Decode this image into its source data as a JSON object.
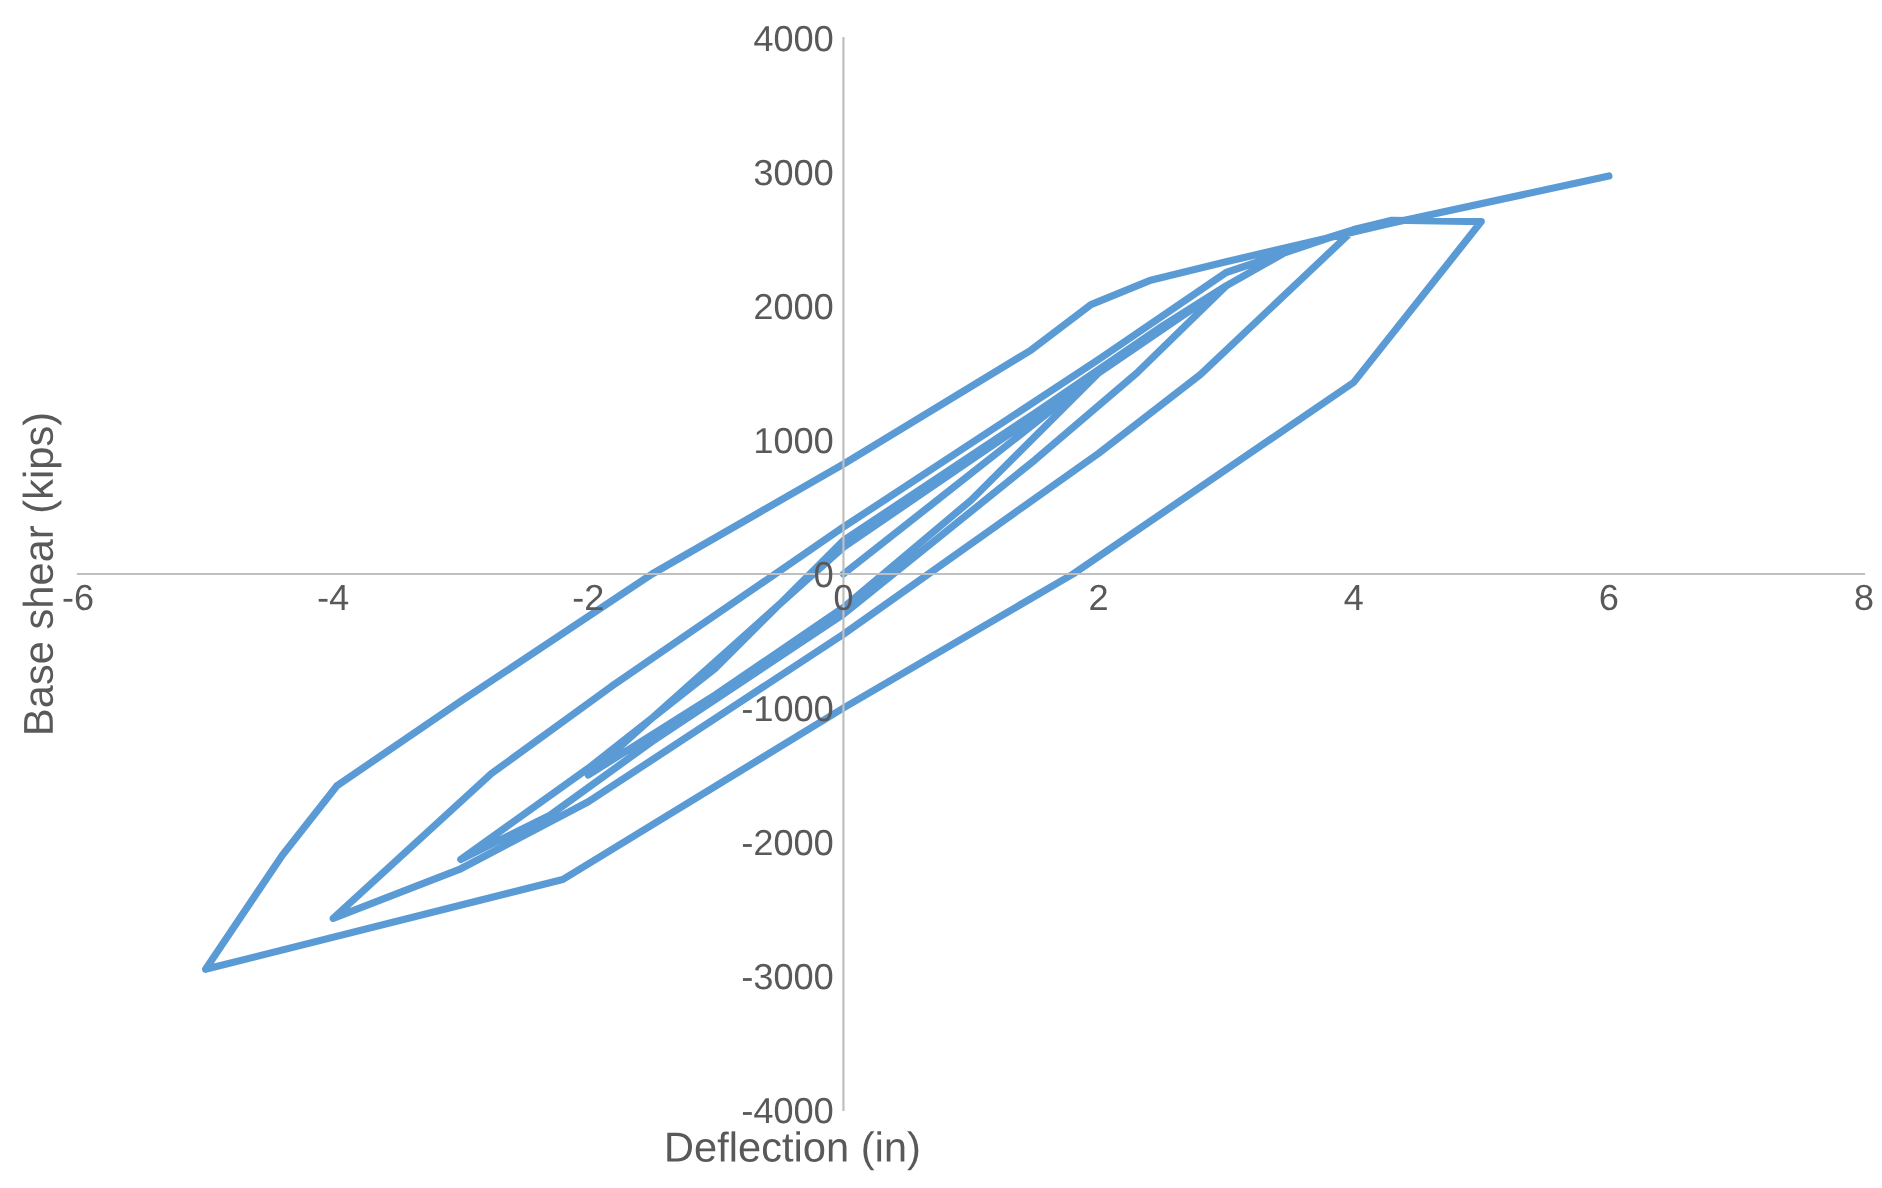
{
  "chart_data": {
    "type": "line",
    "xlabel": "Deflection (in)",
    "ylabel": "Base shear (kips)",
    "xlim": [
      -6,
      8
    ],
    "xticks": [
      -6,
      -4,
      -2,
      0,
      2,
      4,
      6,
      8
    ],
    "ylim": [
      -4000,
      4000
    ],
    "yticks": [
      -4000,
      -3000,
      -2000,
      -1000,
      0,
      1000,
      2000,
      3000,
      4000
    ],
    "grid": false,
    "legend": false,
    "marker": "none",
    "line_style": "solid",
    "series": [
      {
        "color": "#5b9bd5",
        "x": [
          0,
          1,
          2,
          1,
          0,
          -1,
          -2,
          -1,
          0,
          1,
          2,
          3,
          2.3,
          1.5,
          0,
          -1.5,
          -2.3,
          -3,
          -2,
          -1,
          0,
          1.5,
          2.5,
          3,
          3.5,
          4,
          2.8,
          2,
          0,
          -2,
          -3,
          -4,
          -2.76,
          -1.82,
          0,
          2,
          3,
          4,
          4.3,
          5,
          4,
          1.8,
          0,
          -2.2,
          -5,
          -4.4,
          -3.97,
          -3,
          -1.5,
          0,
          1.47,
          1.94,
          2.4,
          3,
          4.3,
          6
        ],
        "values": [
          0,
          750,
          1500,
          550,
          -250,
          -900,
          -1500,
          -650,
          200,
          850,
          1500,
          2150,
          1500,
          850,
          -300,
          -1250,
          -1800,
          -2130,
          -1450,
          -700,
          250,
          1200,
          1850,
          2150,
          2420,
          2570,
          1490,
          900,
          -450,
          -1700,
          -2200,
          -2570,
          -1490,
          -840,
          350,
          1600,
          2250,
          2570,
          2640,
          2630,
          1430,
          0,
          -1000,
          -2280,
          -2950,
          -2100,
          -1580,
          -950,
          0,
          820,
          1670,
          2010,
          2190,
          2330,
          2620,
          2970
        ]
      }
    ]
  }
}
